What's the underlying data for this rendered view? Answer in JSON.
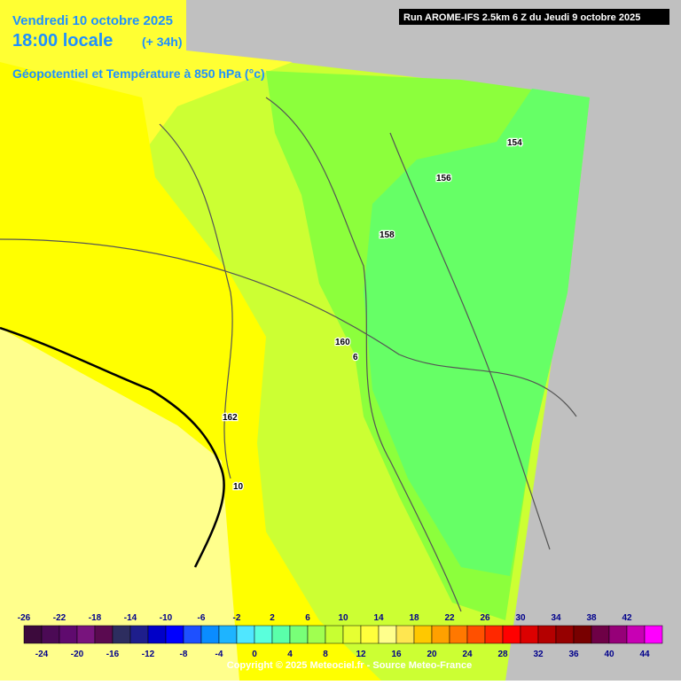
{
  "header": {
    "date": "Vendredi 10 octobre 2025",
    "time": "18:00 locale",
    "lead": "(+ 34h)",
    "field": "Géopotentiel et Température à 850 hPa (°c)",
    "run": "Run AROME-IFS 2.5km 6 Z du Jeudi 9 octobre 2025"
  },
  "contour_labels": [
    {
      "text": "154"
    },
    {
      "text": "156"
    },
    {
      "text": "158"
    },
    {
      "text": "160"
    },
    {
      "text": "162"
    },
    {
      "text": "6"
    },
    {
      "text": "10"
    }
  ],
  "colorbar": {
    "labels": [
      -26,
      -24,
      -22,
      -20,
      -18,
      -16,
      -14,
      -12,
      -10,
      -8,
      -6,
      -4,
      -2,
      0,
      2,
      4,
      6,
      8,
      10,
      12,
      14,
      16,
      18,
      20,
      22,
      24,
      26,
      28,
      30,
      32,
      34,
      36,
      38,
      40,
      42,
      44
    ],
    "colors": [
      "#3c0a3c",
      "#4b0a55",
      "#5f0a6e",
      "#78147d",
      "#5a0a50",
      "#2d2d5f",
      "#1e1e8c",
      "#0000c8",
      "#0000ff",
      "#1e50ff",
      "#0a8cff",
      "#1eb4ff",
      "#50e6ff",
      "#5affdc",
      "#5affaa",
      "#78ff78",
      "#a0ff50",
      "#c8ff32",
      "#e6ff32",
      "#ffff3c",
      "#ffff8c",
      "#ffe650",
      "#ffc800",
      "#ffa000",
      "#ff7800",
      "#ff5000",
      "#ff2800",
      "#ff0000",
      "#dc0000",
      "#b40000",
      "#960000",
      "#780000",
      "#6e0046",
      "#960078",
      "#c800b4",
      "#ff00ff"
    ]
  },
  "copyright": "Copyright © 2025 Meteociel.fr - Source Meteo-France"
}
